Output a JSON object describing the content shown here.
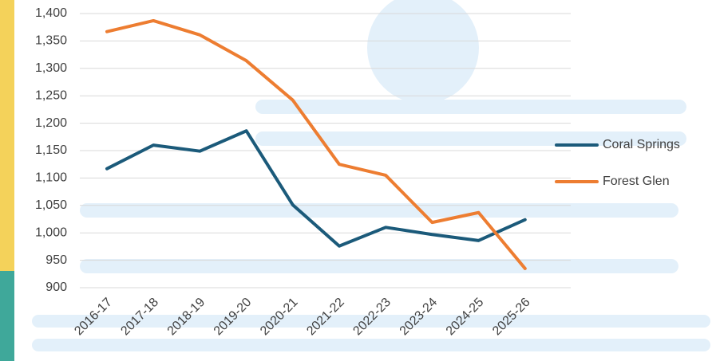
{
  "chart_data": {
    "type": "line",
    "categories": [
      "2016-17",
      "2017-18",
      "2018-19",
      "2019-20",
      "2020-21",
      "2021-22",
      "2022-23",
      "2023-24",
      "2024-25",
      "2025-26"
    ],
    "series": [
      {
        "name": "Coral Springs",
        "color": "#1b5a7a",
        "values": [
          1117,
          1160,
          1149,
          1186,
          1051,
          976,
          1010,
          997,
          986,
          1024
        ]
      },
      {
        "name": "Forest Glen",
        "color": "#ed7d31",
        "values": [
          1367,
          1387,
          1361,
          1314,
          1242,
          1125,
          1105,
          1019,
          1037,
          935
        ]
      }
    ],
    "ylim": [
      900,
      1400
    ],
    "yticks": [
      900,
      950,
      {
        "value": 1000,
        "label": "1,000"
      },
      {
        "value": 1050,
        "label": "1,050"
      },
      {
        "value": 1100,
        "label": "1,100"
      },
      {
        "value": 1150,
        "label": "1,150"
      },
      {
        "value": 1200,
        "label": "1,200"
      },
      {
        "value": 1250,
        "label": "1,250"
      },
      {
        "value": 1300,
        "label": "1,300"
      },
      {
        "value": 1350,
        "label": "1,350"
      },
      {
        "value": 1400,
        "label": "1,400"
      }
    ],
    "grid": true,
    "legend": "right"
  }
}
